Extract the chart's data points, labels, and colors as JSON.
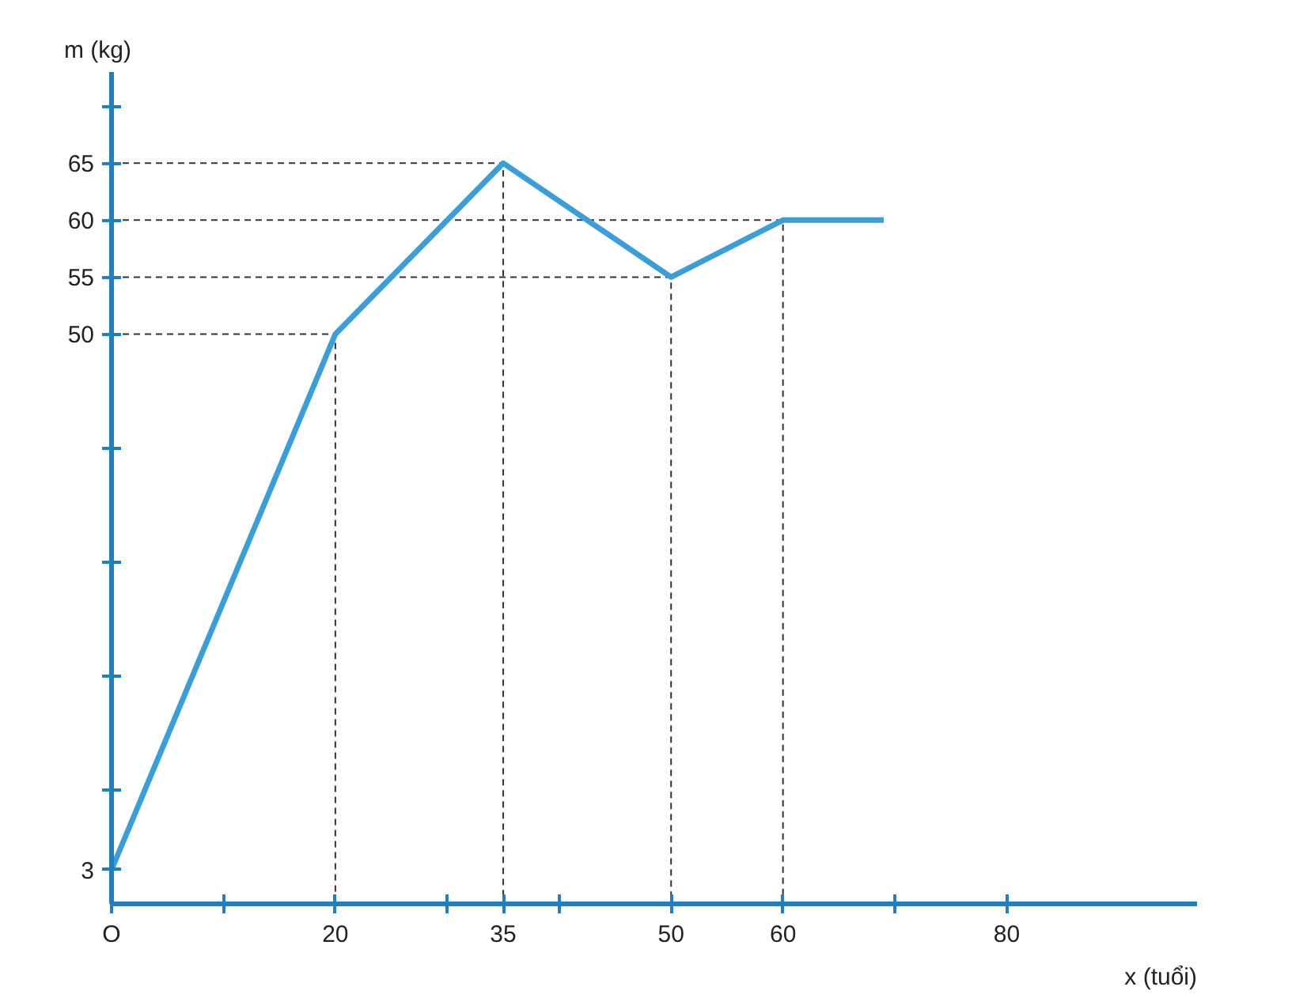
{
  "chart_data": {
    "type": "line",
    "xlabel": "x (tuổi)",
    "ylabel": "m (kg)",
    "x": [
      0,
      20,
      35,
      50,
      60,
      69
    ],
    "series": [
      {
        "color": "#3a9fd8",
        "values": [
          3,
          50,
          65,
          55,
          60,
          60
        ]
      },
      {
        "type": "line",
        "line_style": "dashed",
        "color": "#333333",
        "x": [
          0,
          20,
          20
        ],
        "values": [
          50,
          50,
          0
        ]
      },
      {
        "type": "line",
        "line_style": "dashed",
        "color": "#333333",
        "x": [
          0,
          35,
          35
        ],
        "values": [
          65,
          65,
          0
        ]
      },
      {
        "type": "line",
        "line_style": "dashed",
        "color": "#333333",
        "x": [
          0,
          50,
          50
        ],
        "values": [
          55,
          55,
          0
        ]
      },
      {
        "type": "line",
        "line_style": "dashed",
        "color": "#333333",
        "x": [
          0,
          60,
          60
        ],
        "values": [
          60,
          60,
          0
        ]
      }
    ],
    "xlim": [
      0,
      97
    ],
    "ylim": [
      0,
      73
    ],
    "xticks": [
      {
        "value": 0,
        "label": "O"
      },
      {
        "value": 10,
        "label": null
      },
      20,
      {
        "value": 30,
        "label": null
      },
      35,
      {
        "value": 40,
        "label": null
      },
      50,
      60,
      {
        "value": 70,
        "label": null
      },
      80
    ],
    "yticks": [
      3,
      {
        "value": 10,
        "label": null
      },
      {
        "value": 20,
        "label": null
      },
      {
        "value": 30,
        "label": null
      },
      {
        "value": 40,
        "label": null
      },
      50,
      55,
      60,
      65,
      {
        "value": 70,
        "label": null
      }
    ],
    "grid": false,
    "marker": "none",
    "line_style": "solid"
  }
}
